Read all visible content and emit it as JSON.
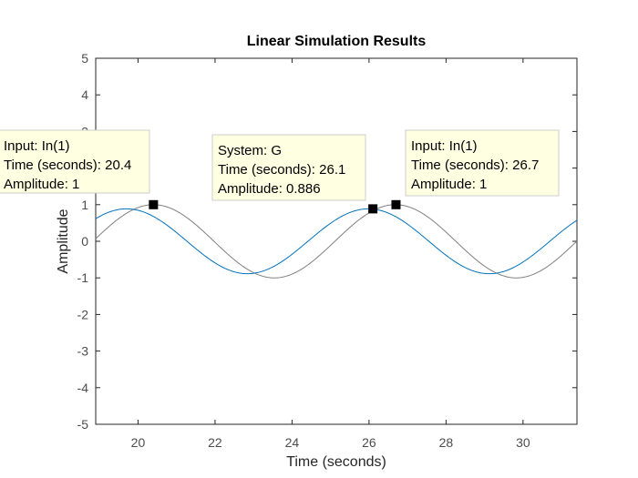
{
  "chart_data": {
    "type": "line",
    "title": "Linear Simulation Results",
    "xlabel": "Time (seconds)",
    "ylabel": "Amplitude",
    "xlim": [
      18.9,
      31.4
    ],
    "ylim": [
      -5,
      5
    ],
    "xticks": [
      20,
      22,
      24,
      26,
      28,
      30
    ],
    "yticks": [
      -5,
      -4,
      -3,
      -2,
      -1,
      0,
      1,
      2,
      3,
      4,
      5
    ],
    "grid": false,
    "series": [
      {
        "name": "In(1)",
        "color": "#808080",
        "function": "sin",
        "amplitude": 1,
        "period": 6.283,
        "peak_times": [
          20.4,
          26.7
        ]
      },
      {
        "name": "G",
        "color": "#0072bd",
        "function": "sin",
        "amplitude": 0.886,
        "period": 6.283,
        "peak_times": [
          19.7,
          26.1
        ]
      }
    ],
    "annotations": [
      {
        "id": "tip-input-1",
        "x": 20.4,
        "y": 1,
        "lines": [
          "Input: In(1)",
          "Time (seconds): 20.4",
          "Amplitude: 1"
        ]
      },
      {
        "id": "tip-system",
        "x": 26.1,
        "y": 0.886,
        "lines": [
          "System: G",
          "Time (seconds): 26.1",
          "Amplitude: 0.886"
        ]
      },
      {
        "id": "tip-input-2",
        "x": 26.7,
        "y": 1,
        "lines": [
          "Input: In(1)",
          "Time (seconds): 26.7",
          "Amplitude: 1"
        ]
      }
    ]
  },
  "colors": {
    "axes_border": "#262626",
    "tooltip_fill": "#ffffe1",
    "tooltip_border": "#cccccc",
    "marker": "#000000"
  }
}
